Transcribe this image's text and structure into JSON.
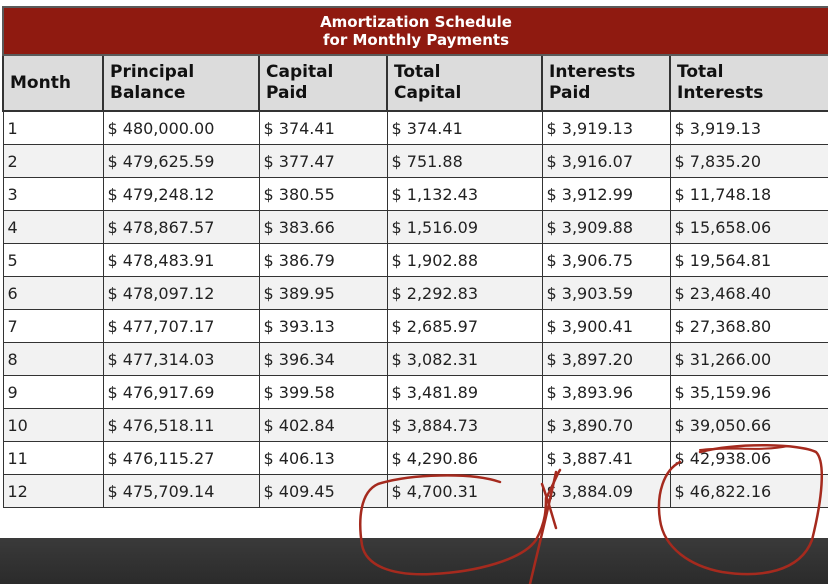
{
  "table": {
    "title_line1": "Amortization Schedule",
    "title_line2": "for Monthly Payments",
    "headers": [
      {
        "line1": "Month",
        "line2": ""
      },
      {
        "line1": "Principal",
        "line2": "Balance"
      },
      {
        "line1": "Capital",
        "line2": "Paid"
      },
      {
        "line1": "Total",
        "line2": "Capital"
      },
      {
        "line1": "Interests",
        "line2": "Paid"
      },
      {
        "line1": "Total",
        "line2": "Interests"
      }
    ],
    "rows": [
      [
        "1",
        "$ 480,000.00",
        "$ 374.41",
        "$ 374.41",
        "$ 3,919.13",
        "$ 3,919.13"
      ],
      [
        "2",
        "$ 479,625.59",
        "$ 377.47",
        "$ 751.88",
        "$ 3,916.07",
        "$ 7,835.20"
      ],
      [
        "3",
        "$ 479,248.12",
        "$ 380.55",
        "$ 1,132.43",
        "$ 3,912.99",
        "$ 11,748.18"
      ],
      [
        "4",
        "$ 478,867.57",
        "$ 383.66",
        "$ 1,516.09",
        "$ 3,909.88",
        "$ 15,658.06"
      ],
      [
        "5",
        "$ 478,483.91",
        "$ 386.79",
        "$ 1,902.88",
        "$ 3,906.75",
        "$ 19,564.81"
      ],
      [
        "6",
        "$ 478,097.12",
        "$ 389.95",
        "$ 2,292.83",
        "$ 3,903.59",
        "$ 23,468.40"
      ],
      [
        "7",
        "$ 477,707.17",
        "$ 393.13",
        "$ 2,685.97",
        "$ 3,900.41",
        "$ 27,368.80"
      ],
      [
        "8",
        "$ 477,314.03",
        "$ 396.34",
        "$ 3,082.31",
        "$ 3,897.20",
        "$ 31,266.00"
      ],
      [
        "9",
        "$ 476,917.69",
        "$ 399.58",
        "$ 3,481.89",
        "$ 3,893.96",
        "$ 35,159.96"
      ],
      [
        "10",
        "$ 476,518.11",
        "$ 402.84",
        "$ 3,884.73",
        "$ 3,890.70",
        "$ 39,050.66"
      ],
      [
        "11",
        "$ 476,115.27",
        "$ 406.13",
        "$ 4,290.86",
        "$ 3,887.41",
        "$ 42,938.06"
      ],
      [
        "12",
        "$ 475,709.14",
        "$ 409.45",
        "$ 4,700.31",
        "$ 3,884.09",
        "$ 46,822.16"
      ]
    ]
  },
  "annotation": {
    "stroke_color": "#a52a1e"
  },
  "colors": {
    "title_bg": "#8f1a10",
    "header_bg": "#dcdcdc",
    "page_bg": "#333333"
  }
}
